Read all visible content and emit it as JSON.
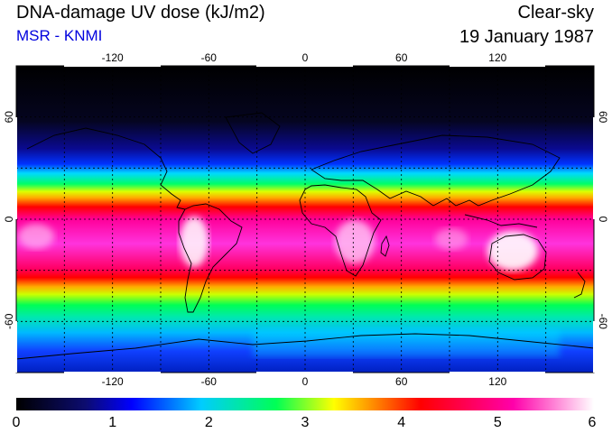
{
  "header": {
    "title": "DNA-damage UV dose (kJ/m2)",
    "subtitle": "MSR - KNMI",
    "condition": "Clear-sky",
    "date": "19 January 1987"
  },
  "map": {
    "projection": "equirectangular",
    "lon_range": [
      -180,
      180
    ],
    "lat_range": [
      -90,
      90
    ],
    "lon_ticks": [
      "-120",
      "-60",
      "0",
      "60",
      "120"
    ],
    "lat_ticks": [
      "60",
      "0",
      "-60"
    ],
    "gridlines": "dashed",
    "coastlines": true
  },
  "colorbar": {
    "labels": [
      "0",
      "1",
      "2",
      "3",
      "4",
      "5",
      "6"
    ],
    "min": 0,
    "max": 6,
    "colors": [
      "#000000",
      "#0c0c70",
      "#0000ff",
      "#00ccff",
      "#00ff66",
      "#ffff00",
      "#ff0000",
      "#ff00aa",
      "#ffffff"
    ]
  }
}
